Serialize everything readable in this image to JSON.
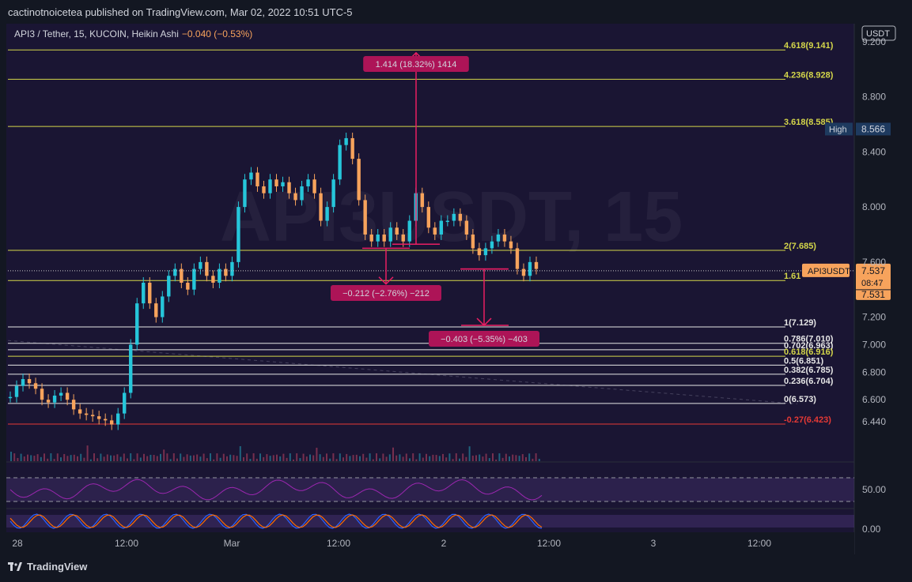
{
  "header": {
    "published": "cactinotnoicetea published on TradingView.com, Mar 02, 2022 10:51 UTC-5"
  },
  "legend": {
    "symbol": "API3 / Tether, 15, KUCOIN, Heikin Ashi",
    "change": "−0.040 (−0.53%)"
  },
  "footer": {
    "brand": "TradingView",
    "logo_icon": "tradingview-logo-icon"
  },
  "colors": {
    "up": "#26c6da",
    "down": "#f7a35c",
    "fib_yellow": "#d4d64a",
    "fib_white": "#e6e6e6",
    "fib_red": "#e53935",
    "measure": "#e91e63",
    "rsi": "#9c27b0",
    "stoch_k": "#2962ff",
    "stoch_d": "#ff6d00"
  },
  "chart_data": {
    "type": "candlestick",
    "symbol_watermark": "API3USDT, 15",
    "currency": "USDT",
    "price_axis": {
      "ticks": [
        "9.200",
        "8.800",
        "8.400",
        "8.000",
        "7.600",
        "7.200",
        "7.000",
        "6.800",
        "6.600",
        "6.440"
      ],
      "ylim": [
        6.32,
        9.32
      ]
    },
    "time_axis": {
      "ticks": [
        "28",
        "12:00",
        "Mar",
        "12:00",
        "2",
        "12:00",
        "3",
        "12:00"
      ]
    },
    "fib_levels": [
      {
        "label": "4.618(9.141)",
        "price": 9.141,
        "color": "yellow"
      },
      {
        "label": "4.236(8.928)",
        "price": 8.928,
        "color": "yellow"
      },
      {
        "label": "3.618(8.585)",
        "price": 8.585,
        "color": "yellow"
      },
      {
        "label": "2(7.685)",
        "price": 7.685,
        "color": "yellow"
      },
      {
        "label": "1.61",
        "price": 7.466,
        "color": "yellow"
      },
      {
        "label": "1(7.129)",
        "price": 7.129,
        "color": "white"
      },
      {
        "label": "0.786(7.010)",
        "price": 7.01,
        "color": "white"
      },
      {
        "label": "0.702(6.963)",
        "price": 6.963,
        "color": "white"
      },
      {
        "label": "0.618(6.916)",
        "price": 6.916,
        "color": "yellow"
      },
      {
        "label": "0.5(6.851)",
        "price": 6.851,
        "color": "white"
      },
      {
        "label": "0.382(6.785)",
        "price": 6.785,
        "color": "white"
      },
      {
        "label": "0.236(6.704)",
        "price": 6.704,
        "color": "white"
      },
      {
        "label": "0(6.573)",
        "price": 6.573,
        "color": "white"
      },
      {
        "label": "-0.27(6.423)",
        "price": 6.423,
        "color": "red"
      }
    ],
    "markers": {
      "high_label": "High",
      "high_value": "8.566",
      "high_price": 8.566,
      "symbol_label": "API3USDT",
      "last_price": "7.537",
      "countdown": "08:47",
      "prev_price": "7.531",
      "last_price_value": 7.537
    },
    "measures": [
      {
        "label": "1.414 (18.32%) 1414"
      },
      {
        "label": "−0.212 (−2.76%) −212"
      },
      {
        "label": "−0.403 (−5.35%) −403"
      }
    ],
    "rsi": {
      "level": "50.00",
      "upper": 70,
      "lower": 30
    },
    "stoch": {
      "level": "0.00"
    },
    "series": [
      {
        "name": "price",
        "values": [
          6.62,
          6.7,
          6.75,
          6.72,
          6.68,
          6.6,
          6.58,
          6.63,
          6.65,
          6.6,
          6.53,
          6.5,
          6.49,
          6.48,
          6.46,
          6.45,
          6.42,
          6.5,
          6.65,
          7.0,
          7.3,
          7.45,
          7.3,
          7.2,
          7.35,
          7.5,
          7.55,
          7.45,
          7.4,
          7.55,
          7.6,
          7.5,
          7.45,
          7.55,
          7.5,
          7.6,
          8.0,
          8.2,
          8.25,
          8.15,
          8.1,
          8.2,
          8.15,
          8.18,
          8.1,
          8.05,
          8.15,
          8.2,
          8.1,
          7.9,
          8.0,
          8.2,
          8.45,
          8.5,
          8.35,
          8.05,
          7.8,
          7.75,
          7.8,
          7.75,
          7.85,
          7.8,
          7.75,
          7.9,
          8.1,
          8.0,
          7.85,
          7.8,
          7.9,
          7.9,
          7.95,
          7.9,
          7.8,
          7.7,
          7.65,
          7.7,
          7.75,
          7.8,
          7.75,
          7.7,
          7.55,
          7.5,
          7.6,
          7.55
        ]
      }
    ]
  }
}
